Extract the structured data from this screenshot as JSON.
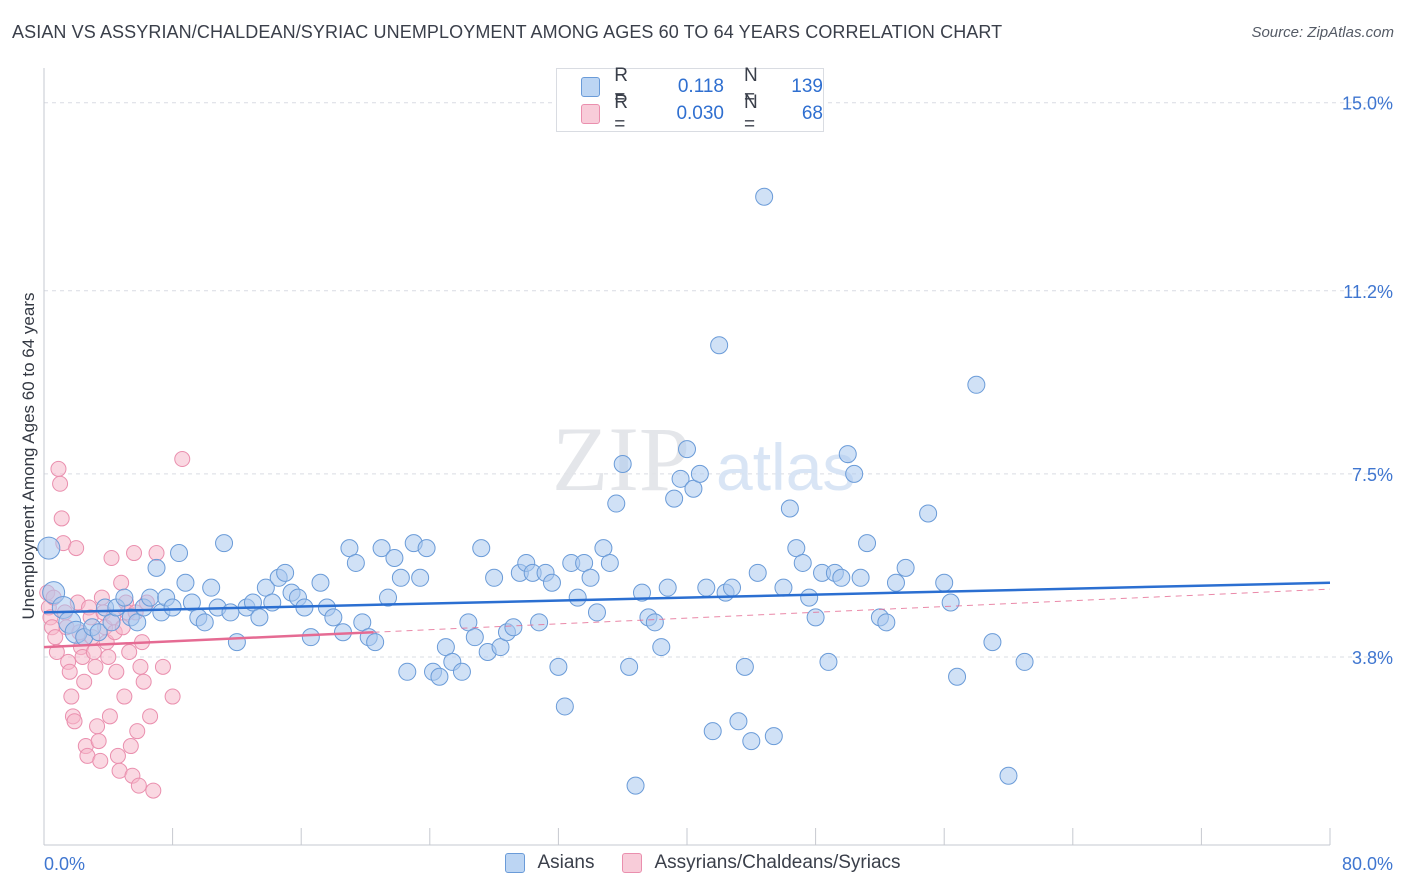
{
  "title": "ASIAN VS ASSYRIAN/CHALDEAN/SYRIAC UNEMPLOYMENT AMONG AGES 60 TO 64 YEARS CORRELATION CHART",
  "source": "Source: ZipAtlas.com",
  "legend": {
    "rows": [
      {
        "r_label": "R =",
        "r_value": "0.118",
        "n_label": "N =",
        "n_value": "139"
      },
      {
        "r_label": "R =",
        "r_value": "0.030",
        "n_label": "N =",
        "n_value": "68"
      }
    ]
  },
  "bottom_legend": {
    "series1": "Asians",
    "series2": "Assyrians/Chaldeans/Syriacs"
  },
  "watermark": {
    "zip": "ZIP",
    "atlas": "atlas"
  },
  "colors": {
    "asian_fill": "#a9c8ef",
    "asian_stroke": "#6a9bd8",
    "asian_line": "#2b6fd1",
    "assyr_fill": "#f6b8cb",
    "assyr_stroke": "#ea8fae",
    "assyr_line": "#e56b93",
    "tick_label": "#3f76d0",
    "grid": "#d9dce3"
  },
  "chart_data": {
    "type": "scatter",
    "title": "ASIAN VS ASSYRIAN/CHALDEAN/SYRIAC UNEMPLOYMENT AMONG AGES 60 TO 64 YEARS CORRELATION CHART",
    "xlabel": "",
    "ylabel": "Unemployment Among Ages 60 to 64 years",
    "xlim": [
      0,
      80
    ],
    "ylim": [
      0,
      15.5
    ],
    "x_tick_labels": [
      "0.0%",
      "80.0%"
    ],
    "y_ticks": [
      3.8,
      7.5,
      11.2,
      15.0
    ],
    "y_tick_labels": [
      "3.8%",
      "7.5%",
      "11.2%",
      "15.0%"
    ],
    "series": [
      {
        "name": "Asians",
        "R": 0.118,
        "N": 139,
        "trend": {
          "x": [
            0,
            80
          ],
          "y": [
            4.7,
            5.3
          ]
        },
        "points": [
          [
            0.3,
            6.0
          ],
          [
            0.6,
            5.1
          ],
          [
            1.2,
            4.8
          ],
          [
            1.6,
            4.5
          ],
          [
            2.0,
            4.3
          ],
          [
            2.5,
            4.2
          ],
          [
            3.0,
            4.4
          ],
          [
            3.4,
            4.3
          ],
          [
            3.8,
            4.8
          ],
          [
            4.2,
            4.5
          ],
          [
            4.5,
            4.8
          ],
          [
            5.0,
            5.0
          ],
          [
            5.4,
            4.6
          ],
          [
            5.8,
            4.5
          ],
          [
            6.2,
            4.8
          ],
          [
            6.6,
            5.0
          ],
          [
            7.0,
            5.6
          ],
          [
            7.3,
            4.7
          ],
          [
            7.6,
            5.0
          ],
          [
            8.0,
            4.8
          ],
          [
            8.4,
            5.9
          ],
          [
            8.8,
            5.3
          ],
          [
            9.2,
            4.9
          ],
          [
            9.6,
            4.6
          ],
          [
            10.0,
            4.5
          ],
          [
            10.4,
            5.2
          ],
          [
            10.8,
            4.8
          ],
          [
            11.2,
            6.1
          ],
          [
            11.6,
            4.7
          ],
          [
            12.0,
            4.1
          ],
          [
            12.6,
            4.8
          ],
          [
            13.0,
            4.9
          ],
          [
            13.4,
            4.6
          ],
          [
            13.8,
            5.2
          ],
          [
            14.2,
            4.9
          ],
          [
            14.6,
            5.4
          ],
          [
            15.0,
            5.5
          ],
          [
            15.4,
            5.1
          ],
          [
            15.8,
            5.0
          ],
          [
            16.2,
            4.8
          ],
          [
            16.6,
            4.2
          ],
          [
            17.2,
            5.3
          ],
          [
            17.6,
            4.8
          ],
          [
            18.0,
            4.6
          ],
          [
            18.6,
            4.3
          ],
          [
            19.0,
            6.0
          ],
          [
            19.4,
            5.7
          ],
          [
            19.8,
            4.5
          ],
          [
            20.2,
            4.2
          ],
          [
            20.6,
            4.1
          ],
          [
            21.0,
            6.0
          ],
          [
            21.4,
            5.0
          ],
          [
            21.8,
            5.8
          ],
          [
            22.2,
            5.4
          ],
          [
            22.6,
            3.5
          ],
          [
            23.0,
            6.1
          ],
          [
            23.4,
            5.4
          ],
          [
            23.8,
            6.0
          ],
          [
            24.2,
            3.5
          ],
          [
            24.6,
            3.4
          ],
          [
            25.0,
            4.0
          ],
          [
            25.4,
            3.7
          ],
          [
            26.0,
            3.5
          ],
          [
            26.4,
            4.5
          ],
          [
            26.8,
            4.2
          ],
          [
            27.2,
            6.0
          ],
          [
            27.6,
            3.9
          ],
          [
            28.0,
            5.4
          ],
          [
            28.4,
            4.0
          ],
          [
            28.8,
            4.3
          ],
          [
            29.2,
            4.4
          ],
          [
            29.6,
            5.5
          ],
          [
            30.0,
            5.7
          ],
          [
            30.4,
            5.5
          ],
          [
            30.8,
            4.5
          ],
          [
            31.2,
            5.5
          ],
          [
            31.6,
            5.3
          ],
          [
            32.0,
            3.6
          ],
          [
            32.4,
            2.8
          ],
          [
            32.8,
            5.7
          ],
          [
            33.2,
            5.0
          ],
          [
            33.6,
            5.7
          ],
          [
            34.0,
            5.4
          ],
          [
            34.4,
            4.7
          ],
          [
            34.8,
            6.0
          ],
          [
            35.2,
            5.7
          ],
          [
            35.6,
            6.9
          ],
          [
            36.0,
            7.7
          ],
          [
            36.4,
            3.6
          ],
          [
            36.8,
            1.2
          ],
          [
            37.2,
            5.1
          ],
          [
            37.6,
            4.6
          ],
          [
            38.0,
            4.5
          ],
          [
            38.4,
            4.0
          ],
          [
            38.8,
            5.2
          ],
          [
            39.2,
            7.0
          ],
          [
            39.6,
            7.4
          ],
          [
            40.0,
            8.0
          ],
          [
            40.4,
            7.2
          ],
          [
            40.8,
            7.5
          ],
          [
            41.2,
            5.2
          ],
          [
            41.6,
            2.3
          ],
          [
            42.0,
            10.1
          ],
          [
            42.4,
            5.1
          ],
          [
            42.8,
            5.2
          ],
          [
            43.2,
            2.5
          ],
          [
            43.6,
            3.6
          ],
          [
            44.0,
            2.1
          ],
          [
            44.4,
            5.5
          ],
          [
            44.8,
            13.1
          ],
          [
            45.4,
            2.2
          ],
          [
            46.0,
            5.2
          ],
          [
            46.4,
            6.8
          ],
          [
            46.8,
            6.0
          ],
          [
            47.2,
            5.7
          ],
          [
            47.6,
            5.0
          ],
          [
            48.0,
            4.6
          ],
          [
            48.4,
            5.5
          ],
          [
            48.8,
            3.7
          ],
          [
            49.2,
            5.5
          ],
          [
            49.6,
            5.4
          ],
          [
            50.0,
            7.9
          ],
          [
            50.4,
            7.5
          ],
          [
            50.8,
            5.4
          ],
          [
            51.2,
            6.1
          ],
          [
            52.0,
            4.6
          ],
          [
            52.4,
            4.5
          ],
          [
            53.0,
            5.3
          ],
          [
            53.6,
            5.6
          ],
          [
            55.0,
            6.7
          ],
          [
            56.0,
            5.3
          ],
          [
            56.4,
            4.9
          ],
          [
            56.8,
            3.4
          ],
          [
            58.0,
            9.3
          ],
          [
            59.0,
            4.1
          ],
          [
            60.0,
            1.4
          ],
          [
            61.0,
            3.7
          ]
        ]
      },
      {
        "name": "Assyrians/Chaldeans/Syriacs",
        "R": 0.03,
        "N": 68,
        "trend": {
          "x": [
            0,
            20.5
          ],
          "y": [
            4.0,
            4.3
          ]
        },
        "points": [
          [
            0.2,
            5.1
          ],
          [
            0.3,
            4.8
          ],
          [
            0.4,
            4.6
          ],
          [
            0.5,
            4.4
          ],
          [
            0.6,
            5.0
          ],
          [
            0.7,
            4.2
          ],
          [
            0.8,
            3.9
          ],
          [
            0.9,
            7.6
          ],
          [
            1.0,
            7.3
          ],
          [
            1.1,
            6.6
          ],
          [
            1.2,
            6.1
          ],
          [
            1.3,
            4.7
          ],
          [
            1.4,
            4.4
          ],
          [
            1.5,
            3.7
          ],
          [
            1.6,
            3.5
          ],
          [
            1.7,
            3.0
          ],
          [
            1.8,
            2.6
          ],
          [
            1.9,
            2.5
          ],
          [
            2.0,
            6.0
          ],
          [
            2.1,
            4.9
          ],
          [
            2.2,
            4.3
          ],
          [
            2.3,
            4.0
          ],
          [
            2.4,
            3.8
          ],
          [
            2.5,
            3.3
          ],
          [
            2.6,
            2.0
          ],
          [
            2.7,
            1.8
          ],
          [
            2.8,
            4.8
          ],
          [
            2.9,
            4.6
          ],
          [
            3.0,
            4.2
          ],
          [
            3.1,
            3.9
          ],
          [
            3.2,
            3.6
          ],
          [
            3.3,
            2.4
          ],
          [
            3.4,
            2.1
          ],
          [
            3.5,
            1.7
          ],
          [
            3.6,
            5.0
          ],
          [
            3.7,
            4.7
          ],
          [
            3.8,
            4.4
          ],
          [
            3.9,
            4.1
          ],
          [
            4.0,
            3.8
          ],
          [
            4.1,
            2.6
          ],
          [
            4.2,
            5.8
          ],
          [
            4.3,
            4.6
          ],
          [
            4.4,
            4.3
          ],
          [
            4.5,
            3.5
          ],
          [
            4.6,
            1.8
          ],
          [
            4.7,
            1.5
          ],
          [
            4.8,
            5.3
          ],
          [
            4.9,
            4.4
          ],
          [
            5.0,
            3.0
          ],
          [
            5.1,
            4.9
          ],
          [
            5.2,
            4.7
          ],
          [
            5.3,
            3.9
          ],
          [
            5.4,
            2.0
          ],
          [
            5.5,
            1.4
          ],
          [
            5.6,
            5.9
          ],
          [
            5.7,
            4.7
          ],
          [
            5.8,
            2.3
          ],
          [
            5.9,
            1.2
          ],
          [
            6.0,
            3.6
          ],
          [
            6.1,
            4.1
          ],
          [
            6.2,
            3.3
          ],
          [
            6.4,
            4.9
          ],
          [
            6.6,
            2.6
          ],
          [
            6.8,
            1.1
          ],
          [
            7.0,
            5.9
          ],
          [
            7.4,
            3.6
          ],
          [
            8.0,
            3.0
          ],
          [
            8.6,
            7.8
          ]
        ]
      }
    ]
  }
}
